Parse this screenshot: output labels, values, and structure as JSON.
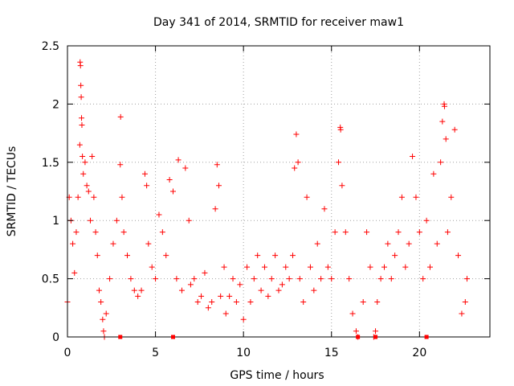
{
  "chart_data": {
    "type": "scatter",
    "title": "Day 341 of 2014, SRMTID for receiver maw1",
    "xlabel": "GPS time / hours",
    "ylabel": "SRMTID / TECUs",
    "xlim": [
      0,
      24
    ],
    "ylim": [
      0,
      2.5
    ],
    "xticks": [
      "0",
      "5",
      "10",
      "15",
      "20"
    ],
    "yticks": [
      "0",
      "0.5",
      "1",
      "1.5",
      "2",
      "2.5"
    ],
    "grid": true,
    "marker": "+",
    "color": "#ff0000",
    "series": [
      {
        "name": "SRMTID",
        "points": [
          [
            0.0,
            0.3
          ],
          [
            0.1,
            1.2
          ],
          [
            0.2,
            1.0
          ],
          [
            0.3,
            0.8
          ],
          [
            0.4,
            0.55
          ],
          [
            0.5,
            0.9
          ],
          [
            0.6,
            1.2
          ],
          [
            0.7,
            1.65
          ],
          [
            0.72,
            2.36
          ],
          [
            0.74,
            2.33
          ],
          [
            0.76,
            2.16
          ],
          [
            0.78,
            2.06
          ],
          [
            0.8,
            1.88
          ],
          [
            0.82,
            1.82
          ],
          [
            0.85,
            1.55
          ],
          [
            0.9,
            1.4
          ],
          [
            1.0,
            1.5
          ],
          [
            1.1,
            1.3
          ],
          [
            1.2,
            1.25
          ],
          [
            1.3,
            1.0
          ],
          [
            1.4,
            1.55
          ],
          [
            1.5,
            1.2
          ],
          [
            1.6,
            0.9
          ],
          [
            1.7,
            0.7
          ],
          [
            1.8,
            0.4
          ],
          [
            1.9,
            0.3
          ],
          [
            2.0,
            0.15
          ],
          [
            2.05,
            0.05
          ],
          [
            2.1,
            0.0
          ],
          [
            2.2,
            0.2
          ],
          [
            2.4,
            0.5
          ],
          [
            2.6,
            0.8
          ],
          [
            2.8,
            1.0
          ],
          [
            3.0,
            1.48
          ],
          [
            3.02,
            1.89
          ],
          [
            3.1,
            1.2
          ],
          [
            3.2,
            0.9
          ],
          [
            3.4,
            0.7
          ],
          [
            3.6,
            0.5
          ],
          [
            3.8,
            0.4
          ],
          [
            4.0,
            0.35
          ],
          [
            4.2,
            0.4
          ],
          [
            4.4,
            1.4
          ],
          [
            4.5,
            1.3
          ],
          [
            4.6,
            0.8
          ],
          [
            4.8,
            0.6
          ],
          [
            5.0,
            0.5
          ],
          [
            5.2,
            1.05
          ],
          [
            5.4,
            0.9
          ],
          [
            5.6,
            0.7
          ],
          [
            5.8,
            1.35
          ],
          [
            6.0,
            1.25
          ],
          [
            6.2,
            0.5
          ],
          [
            6.3,
            1.52
          ],
          [
            6.5,
            0.4
          ],
          [
            6.7,
            1.45
          ],
          [
            6.9,
            1.0
          ],
          [
            7.0,
            0.45
          ],
          [
            7.2,
            0.5
          ],
          [
            7.4,
            0.3
          ],
          [
            7.6,
            0.35
          ],
          [
            7.8,
            0.55
          ],
          [
            8.0,
            0.25
          ],
          [
            8.2,
            0.3
          ],
          [
            8.4,
            1.1
          ],
          [
            8.5,
            1.48
          ],
          [
            8.6,
            1.3
          ],
          [
            8.7,
            0.35
          ],
          [
            8.9,
            0.6
          ],
          [
            9.0,
            0.2
          ],
          [
            9.2,
            0.35
          ],
          [
            9.4,
            0.5
          ],
          [
            9.6,
            0.3
          ],
          [
            9.8,
            0.45
          ],
          [
            10.0,
            0.15
          ],
          [
            10.2,
            0.6
          ],
          [
            10.4,
            0.3
          ],
          [
            10.6,
            0.5
          ],
          [
            10.8,
            0.7
          ],
          [
            11.0,
            0.4
          ],
          [
            11.2,
            0.6
          ],
          [
            11.4,
            0.35
          ],
          [
            11.6,
            0.5
          ],
          [
            11.8,
            0.7
          ],
          [
            12.0,
            0.4
          ],
          [
            12.2,
            0.45
          ],
          [
            12.4,
            0.6
          ],
          [
            12.6,
            0.5
          ],
          [
            12.8,
            0.7
          ],
          [
            12.9,
            1.45
          ],
          [
            13.0,
            1.74
          ],
          [
            13.1,
            1.5
          ],
          [
            13.2,
            0.5
          ],
          [
            13.4,
            0.3
          ],
          [
            13.6,
            1.2
          ],
          [
            13.8,
            0.6
          ],
          [
            14.0,
            0.4
          ],
          [
            14.2,
            0.8
          ],
          [
            14.4,
            0.5
          ],
          [
            14.6,
            1.1
          ],
          [
            14.8,
            0.6
          ],
          [
            15.0,
            0.5
          ],
          [
            15.2,
            0.9
          ],
          [
            15.4,
            1.5
          ],
          [
            15.5,
            1.8
          ],
          [
            15.52,
            1.78
          ],
          [
            15.6,
            1.3
          ],
          [
            15.8,
            0.9
          ],
          [
            16.0,
            0.5
          ],
          [
            16.2,
            0.2
          ],
          [
            16.4,
            0.05
          ],
          [
            16.5,
            0.0
          ],
          [
            16.8,
            0.3
          ],
          [
            17.0,
            0.9
          ],
          [
            17.2,
            0.6
          ],
          [
            17.4,
            0.0
          ],
          [
            17.5,
            0.05
          ],
          [
            17.6,
            0.3
          ],
          [
            17.8,
            0.5
          ],
          [
            18.0,
            0.6
          ],
          [
            18.2,
            0.8
          ],
          [
            18.4,
            0.5
          ],
          [
            18.6,
            0.7
          ],
          [
            18.8,
            0.9
          ],
          [
            19.0,
            1.2
          ],
          [
            19.2,
            0.6
          ],
          [
            19.4,
            0.8
          ],
          [
            19.6,
            1.55
          ],
          [
            19.8,
            1.2
          ],
          [
            20.0,
            0.9
          ],
          [
            20.2,
            0.5
          ],
          [
            20.4,
            1.0
          ],
          [
            20.6,
            0.6
          ],
          [
            20.8,
            1.4
          ],
          [
            21.0,
            0.8
          ],
          [
            21.2,
            1.5
          ],
          [
            21.3,
            1.85
          ],
          [
            21.4,
            2.0
          ],
          [
            21.42,
            1.98
          ],
          [
            21.5,
            1.7
          ],
          [
            21.6,
            0.9
          ],
          [
            21.8,
            1.2
          ],
          [
            22.0,
            1.78
          ],
          [
            22.2,
            0.7
          ],
          [
            22.4,
            0.2
          ],
          [
            22.6,
            0.3
          ],
          [
            22.7,
            0.5
          ]
        ]
      }
    ],
    "axis_markers": [
      3,
      6,
      16.5,
      17.5,
      20.4
    ]
  }
}
